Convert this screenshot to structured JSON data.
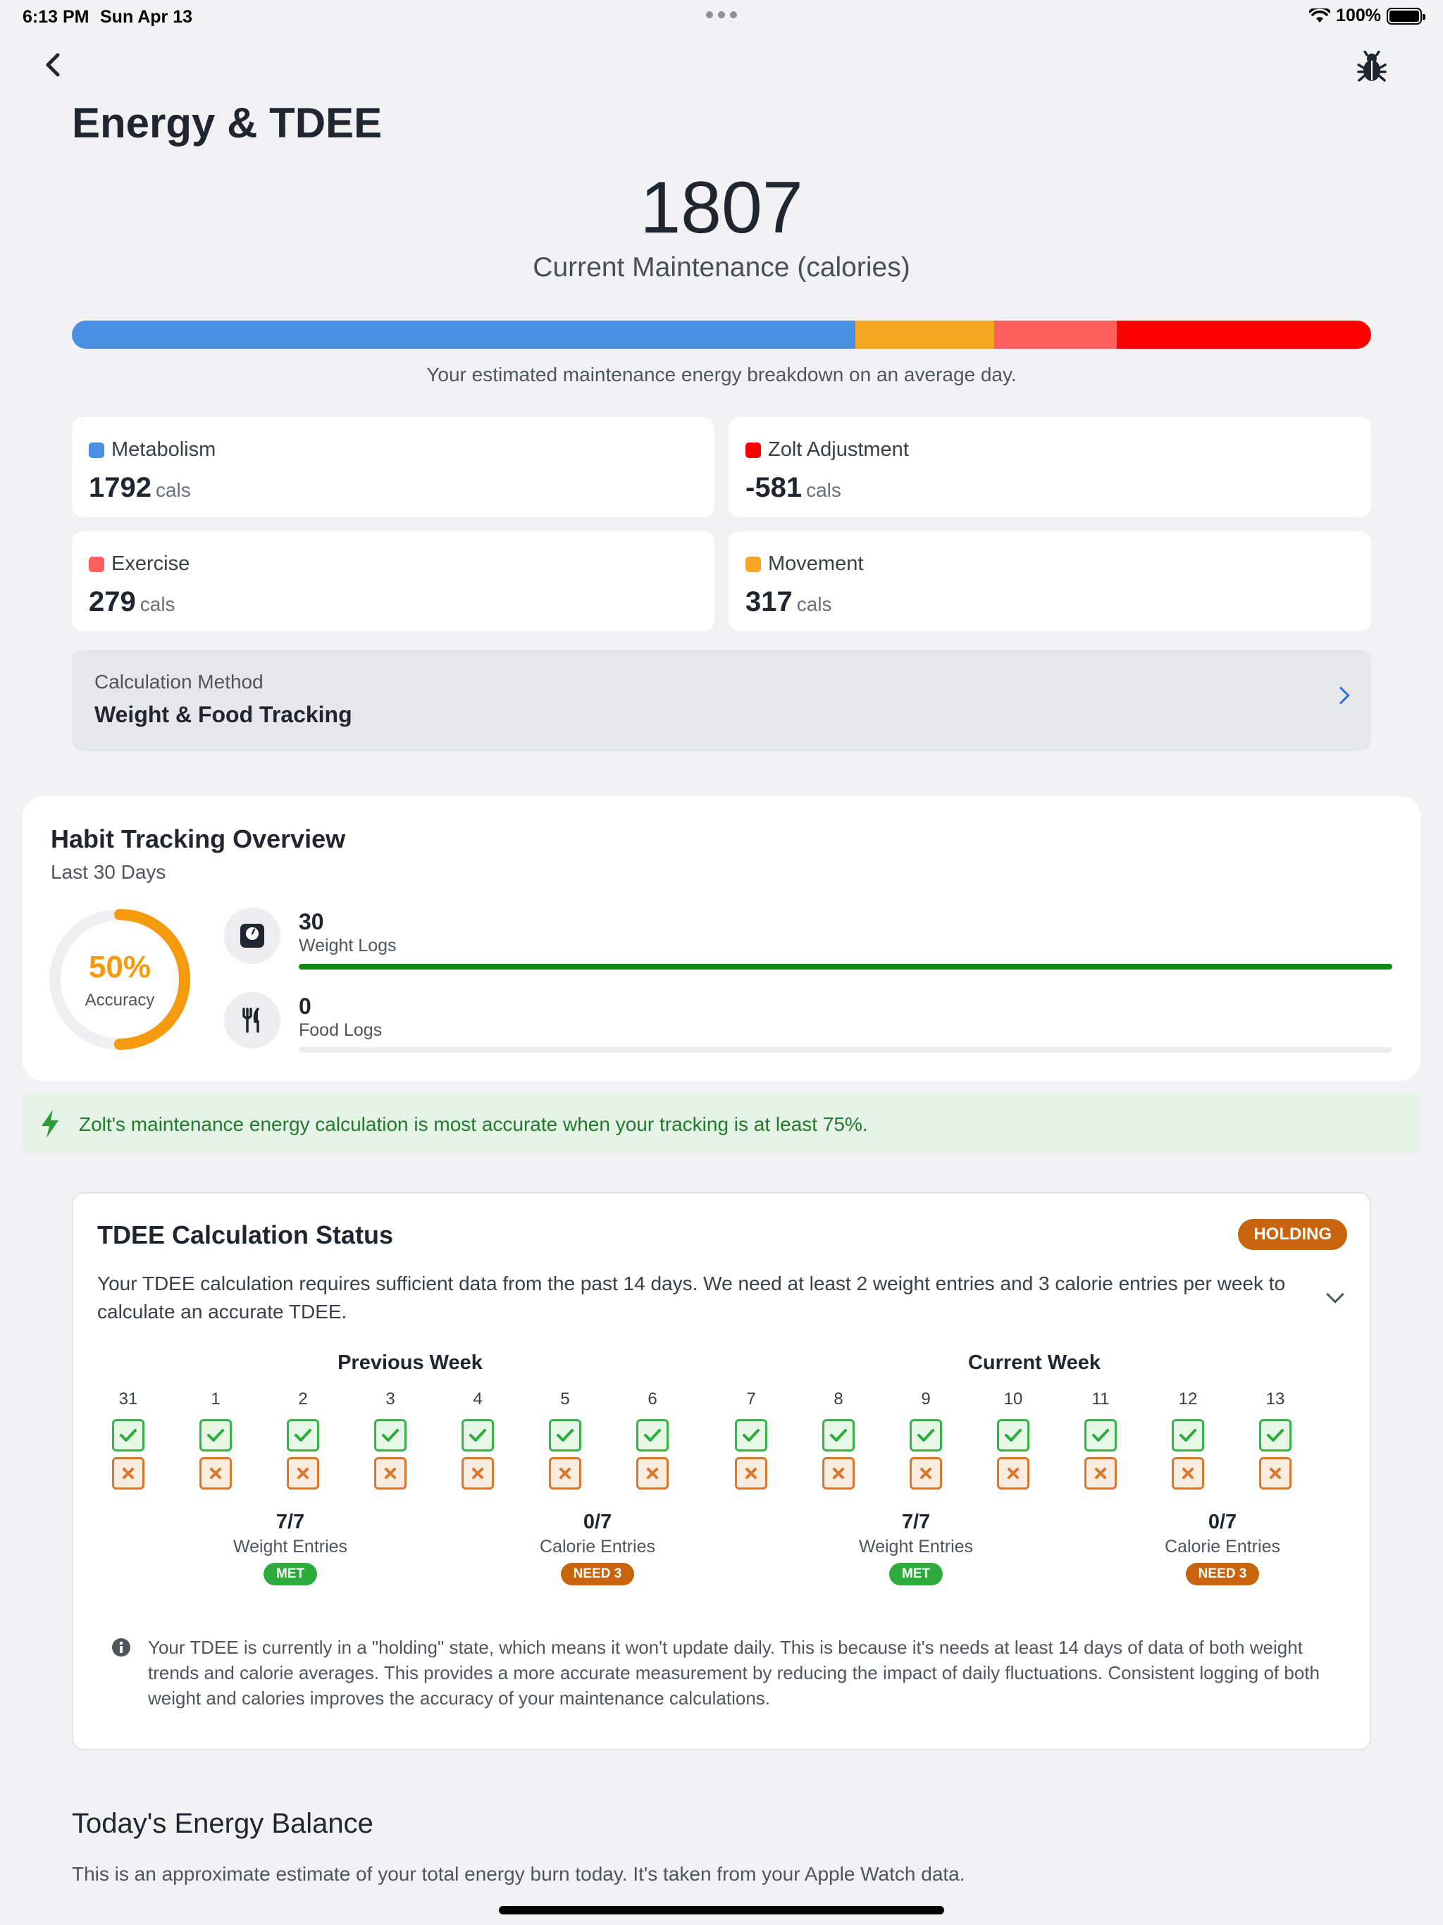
{
  "status_bar": {
    "time": "6:13 PM",
    "date": "Sun Apr 13",
    "battery": "100%"
  },
  "header": {
    "back_icon": "chevron-left-icon",
    "bug_icon": "bug-icon",
    "title": "Energy & TDEE"
  },
  "maintenance": {
    "value": "1807",
    "label": "Current Maintenance (calories)",
    "caption": "Your estimated maintenance energy breakdown on an average day."
  },
  "breakdown_bar": [
    {
      "name": "Metabolism",
      "fraction": 0.603,
      "color": "#4a90e2"
    },
    {
      "name": "Movement",
      "fraction": 0.107,
      "color": "#f5a623"
    },
    {
      "name": "Exercise",
      "fraction": 0.094,
      "color": "#ff5f5f"
    },
    {
      "name": "Zolt Adjustment",
      "fraction": 0.196,
      "color": "#ff0000"
    }
  ],
  "stats": [
    {
      "label": "Metabolism",
      "value": "1792",
      "unit": "cals",
      "color": "#4a90e2"
    },
    {
      "label": "Zolt Adjustment",
      "value": "-581",
      "unit": "cals",
      "color": "#ff0000"
    },
    {
      "label": "Exercise",
      "value": "279",
      "unit": "cals",
      "color": "#ff5f5f"
    },
    {
      "label": "Movement",
      "value": "317",
      "unit": "cals",
      "color": "#f5a623"
    }
  ],
  "method": {
    "label": "Calculation Method",
    "value": "Weight & Food Tracking"
  },
  "habit": {
    "title": "Habit Tracking Overview",
    "subtitle": "Last 30 Days",
    "accuracy": "50%",
    "accuracy_fraction": 0.5,
    "accuracy_label": "Accuracy",
    "weight": {
      "count": "30",
      "label": "Weight Logs",
      "fraction": 1.0
    },
    "food": {
      "count": "0",
      "label": "Food Logs",
      "fraction": 0.0
    }
  },
  "tip": "Zolt's maintenance energy calculation is most accurate when your tracking is at least 75%.",
  "status": {
    "title": "TDEE Calculation Status",
    "badge": "HOLDING",
    "description": "Your TDEE calculation requires sufficient data from the past 14 days. We need at least 2 weight entries and 3 calorie entries per week to calculate an accurate TDEE.",
    "previous_week_label": "Previous Week",
    "current_week_label": "Current Week",
    "days": [
      "31",
      "1",
      "2",
      "3",
      "4",
      "5",
      "6",
      "7",
      "8",
      "9",
      "10",
      "11",
      "12",
      "13"
    ],
    "summaries": [
      {
        "value": "7/7",
        "label": "Weight Entries",
        "badge": "MET"
      },
      {
        "value": "0/7",
        "label": "Calorie Entries",
        "badge": "NEED 3"
      },
      {
        "value": "7/7",
        "label": "Weight Entries",
        "badge": "MET"
      },
      {
        "value": "0/7",
        "label": "Calorie Entries",
        "badge": "NEED 3"
      }
    ],
    "info": "Your TDEE is currently in a \"holding\" state, which means it won't update daily. This is because it's needs at least 14 days of data of both weight trends and calorie averages. This provides a more accurate measurement by reducing the impact of daily fluctuations. Consistent logging of both weight and calories improves the accuracy of your maintenance calculations."
  },
  "energy_balance": {
    "title": "Today's Energy Balance",
    "subtitle": "This is an approximate estimate of your total energy burn today. It's taken from your Apple Watch data."
  },
  "colors": {
    "met": "#2eaa3c",
    "need": "#c8640d",
    "holding": "#c8640d"
  }
}
